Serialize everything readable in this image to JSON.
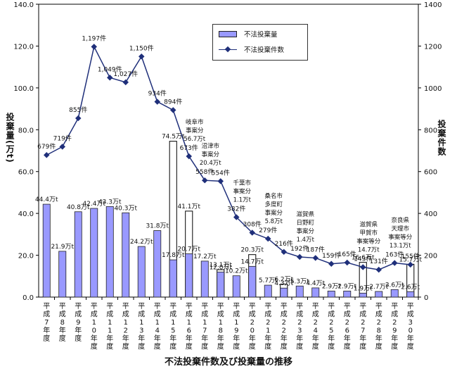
{
  "chart_data": {
    "type": "bar+line",
    "title": "不法投棄件数及び投棄量の推移",
    "ylabel_left": "投棄量(万t)",
    "ylabel_right": "投棄件数",
    "ylim_left": [
      0,
      140
    ],
    "ylim_right": [
      0,
      1400
    ],
    "yticks_left": [
      "0.0",
      "20.0",
      "40.0",
      "60.0",
      "80.0",
      "100.0",
      "120.0",
      "140.0"
    ],
    "yticks_right": [
      "0",
      "200",
      "400",
      "600",
      "800",
      "1000",
      "1200",
      "1400"
    ],
    "categories": [
      "平成7年度",
      "平成8年度",
      "平成9年度",
      "平成10年度",
      "平成11年度",
      "平成12年度",
      "平成13年度",
      "平成14年度",
      "平成15年度",
      "平成16年度",
      "平成17年度",
      "平成18年度",
      "平成19年度",
      "平成20年度",
      "平成21年度",
      "平成22年度",
      "平成23年度",
      "平成24年度",
      "平成25年度",
      "平成26年度",
      "平成27年度",
      "平成28年度",
      "平成29年度",
      "平成30年度"
    ],
    "series": [
      {
        "name": "不法投棄量",
        "axis": "left",
        "kind": "bar",
        "color": "#9999ff",
        "values": [
          44.4,
          21.9,
          40.8,
          42.4,
          43.3,
          40.3,
          24.2,
          31.8,
          17.8,
          20.7,
          17.2,
          12.0,
          10.2,
          14.7,
          5.7,
          4.3,
          5.3,
          4.4,
          2.9,
          2.9,
          1.9,
          2.7,
          3.6,
          2.6
        ],
        "labels": [
          "44.4万t",
          "21.9万t",
          "40.8万t",
          "42.4万t",
          "43.3万t",
          "40.3万t",
          "24.2万t",
          "31.8万t",
          "17.8万t",
          "20.7万t",
          "17.2万t",
          "12.0万t",
          "10.2万t",
          "14.7万t",
          "5.7万t",
          "4.3万t",
          "5.3万t",
          "4.4万t",
          "2.9万t",
          "2.9万t",
          "1.9万t",
          "2.7万t",
          "3.6万t",
          "2.6万t"
        ]
      },
      {
        "name": "不法投棄件数",
        "axis": "right",
        "kind": "line",
        "color": "#1f2f7a",
        "values": [
          679,
          719,
          855,
          1197,
          1049,
          1027,
          1150,
          934,
          894,
          673,
          558,
          554,
          382,
          308,
          279,
          216,
          192,
          187,
          159,
          165,
          143,
          131,
          163,
          155
        ],
        "labels": [
          "679件",
          "719件",
          "855件",
          "1,197件",
          "1,049件",
          "1,027件",
          "1,150件",
          "934件",
          "894件",
          "673件",
          "558件",
          "554件",
          "382件",
          "308件",
          "279件",
          "216件",
          "192件",
          "187件",
          "159件",
          "165件",
          "143件",
          "131件",
          "163件",
          "155件"
        ]
      }
    ],
    "outline_bars": [
      {
        "index": 8,
        "value": 74.5,
        "label": "74.5万t"
      },
      {
        "index": 9,
        "value": 41.1,
        "label": "41.1万t"
      },
      {
        "index": 11,
        "value": 13.1,
        "label": "13.1万t"
      },
      {
        "index": 13,
        "value": 20.3,
        "label": "20.3万t"
      },
      {
        "index": 15,
        "value": 6.2,
        "label": "6.2万t"
      },
      {
        "index": 20,
        "value": 16.6,
        "label": "16.6万t"
      },
      {
        "index": 23,
        "value": 15.7,
        "label": "15.7万t"
      }
    ],
    "annotations": [
      {
        "index": 9,
        "lines": [
          "岐阜市",
          "事案分",
          "56.7万t"
        ]
      },
      {
        "index": 10,
        "lines": [
          "沼津市",
          "事案分",
          "20.4万t"
        ]
      },
      {
        "index": 12,
        "lines": [
          "千葉市",
          "事案分",
          "1.1万t"
        ]
      },
      {
        "index": 14,
        "lines": [
          "桑名市",
          "多度町",
          "事案分",
          "5.8万t"
        ]
      },
      {
        "index": 16,
        "lines": [
          "滋賀県",
          "日野町",
          "事案分",
          "1.4万t"
        ]
      },
      {
        "index": 20,
        "lines": [
          "滋賀県",
          "甲賀市",
          "事案等分",
          "14.7万t"
        ]
      },
      {
        "index": 22,
        "lines": [
          "奈良県",
          "天理市",
          "事案等分",
          "13.1万t"
        ]
      }
    ],
    "legend_position": "top-center",
    "grid": false
  }
}
